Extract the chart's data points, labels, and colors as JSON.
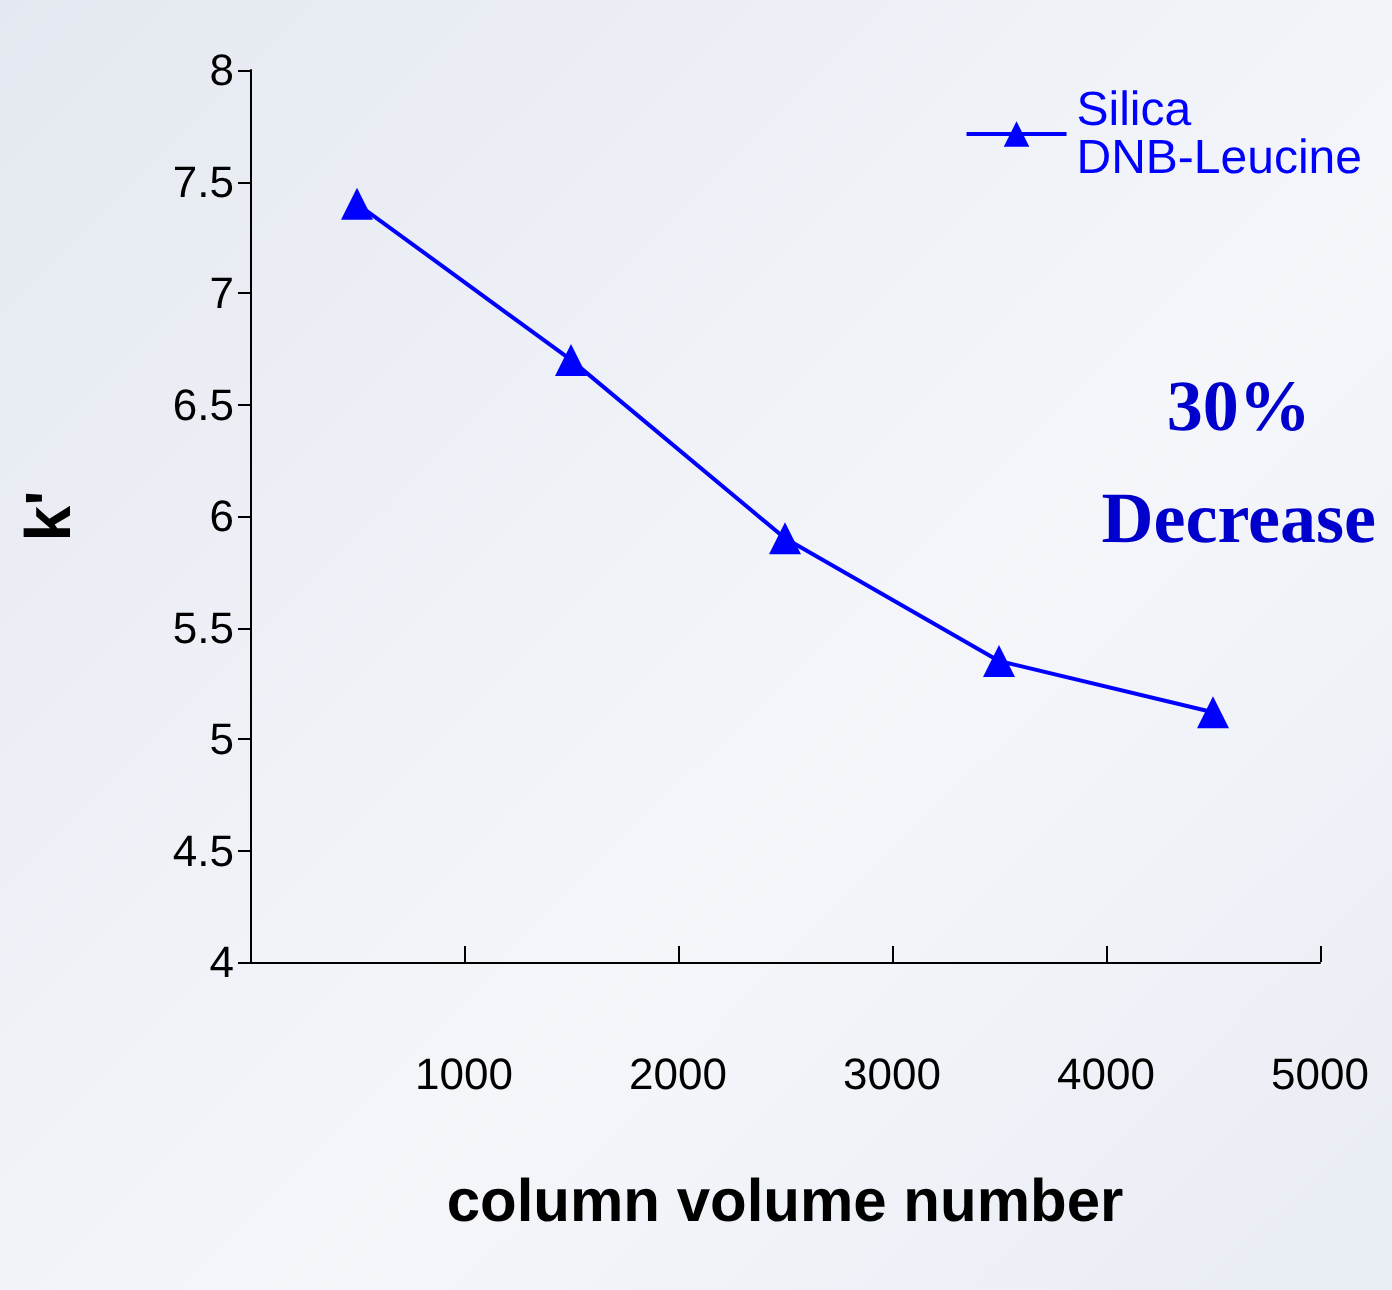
{
  "chart_data": {
    "type": "line",
    "xlabel": "column volume number",
    "ylabel": "k'",
    "x": [
      500,
      1500,
      2500,
      3500,
      4500
    ],
    "series": [
      {
        "name": "Silica DNB-Leucine",
        "color": "#0000ff",
        "values": [
          7.4,
          6.7,
          5.9,
          5.35,
          5.12
        ]
      }
    ],
    "xlim": [
      0,
      5000
    ],
    "xticks": [
      1000,
      2000,
      3000,
      4000,
      5000
    ],
    "ylim": [
      4,
      8
    ],
    "yticks": [
      4,
      4.5,
      5,
      5.5,
      6,
      6.5,
      7,
      7.5,
      8
    ],
    "annotations": [
      "30% Decrease"
    ],
    "legend": "top right",
    "marker": "triangle",
    "line_style": "solid",
    "grid": false
  }
}
